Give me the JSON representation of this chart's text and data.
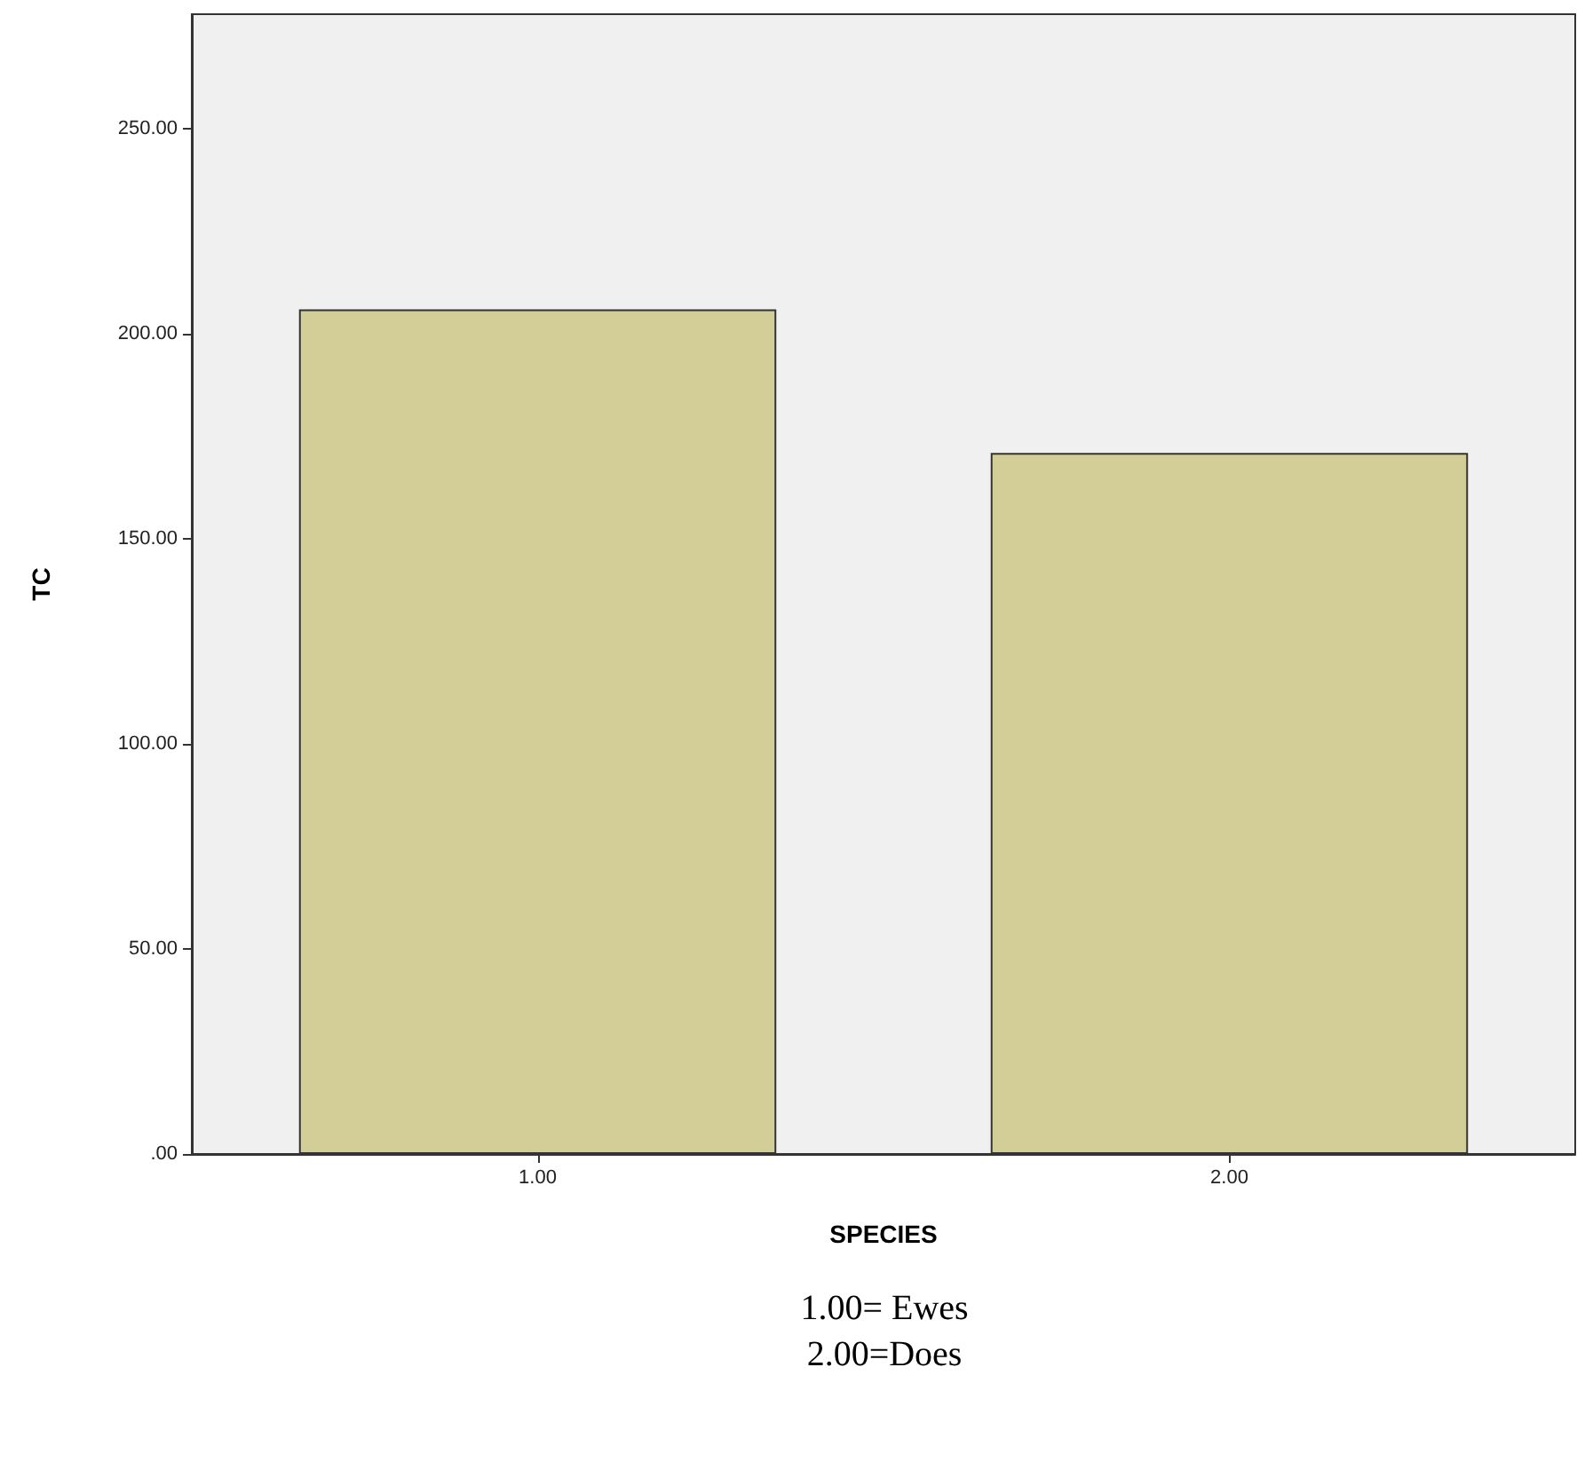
{
  "chart_data": {
    "type": "bar",
    "xlabel": "SPECIES",
    "ylabel": "TC",
    "categories": [
      "1.00",
      "2.00"
    ],
    "values": [
      206,
      171
    ],
    "color": "#d3ce97",
    "ylim": [
      0,
      278
    ],
    "yticks": [
      {
        "value": 0,
        "label": ".00"
      },
      {
        "value": 50,
        "label": "50.00"
      },
      {
        "value": 100,
        "label": "100.00"
      },
      {
        "value": 150,
        "label": "150.00"
      },
      {
        "value": 200,
        "label": "200.00"
      },
      {
        "value": 250,
        "label": "250.00"
      }
    ],
    "grid": false,
    "annotations": [
      "1.00= Ewes",
      "2.00=Does"
    ]
  }
}
